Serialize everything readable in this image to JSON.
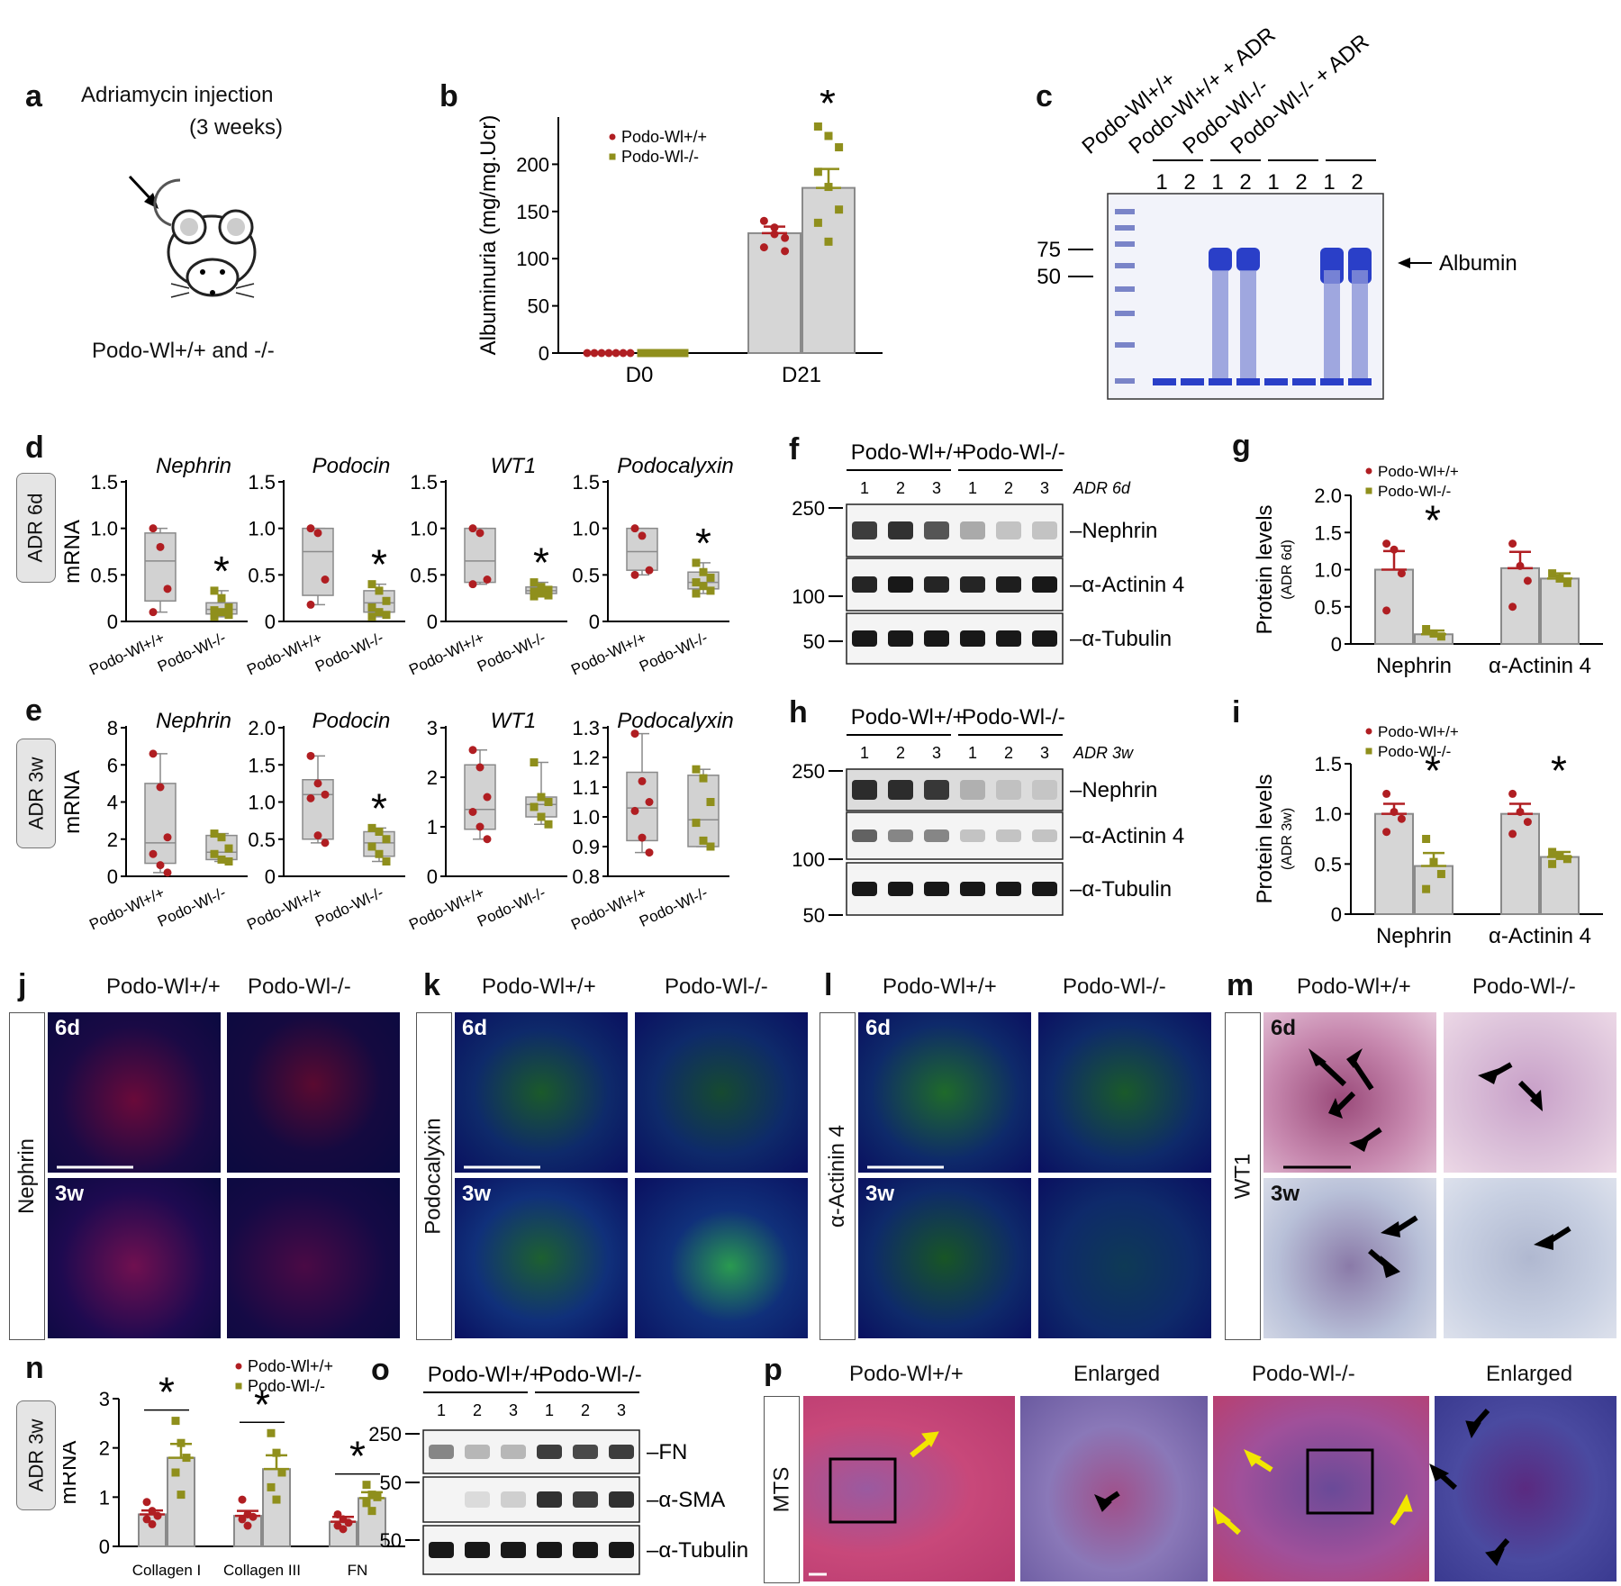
{
  "panels": {
    "a": {
      "label": "a",
      "line1": "Adriamycin injection",
      "line2": "(3 weeks)",
      "caption": "Podo-Wl+/+ and -/-"
    },
    "b": {
      "label": "b"
    },
    "c": {
      "label": "c",
      "lanes": [
        "Podo-Wl+/+",
        "Podo-Wl+/+ + ADR",
        "Podo-Wl-/-",
        "Podo-Wl-/- + ADR"
      ],
      "lane_numbers": [
        "1",
        "2",
        "1",
        "2",
        "1",
        "2",
        "1",
        "2"
      ],
      "markers": [
        "75",
        "50"
      ],
      "arrow_label": "Albumin"
    },
    "d": {
      "label": "d",
      "row_tag": "ADR 6d"
    },
    "e": {
      "label": "e",
      "row_tag": "ADR 3w"
    },
    "f": {
      "label": "f",
      "groups": [
        "Podo-Wl+/+",
        "Podo-Wl-/-"
      ],
      "lanes": [
        "1",
        "2",
        "3",
        "1",
        "2",
        "3"
      ],
      "condition": "ADR 6d",
      "markers": [
        "250",
        "100",
        "50"
      ],
      "bands": [
        "Nephrin",
        "α-Actinin 4",
        "α-Tubulin"
      ]
    },
    "g": {
      "label": "g"
    },
    "h": {
      "label": "h",
      "groups": [
        "Podo-Wl+/+",
        "Podo-Wl-/-"
      ],
      "lanes": [
        "1",
        "2",
        "3",
        "1",
        "2",
        "3"
      ],
      "condition": "ADR 3w",
      "markers": [
        "250",
        "100",
        "50"
      ],
      "bands": [
        "Nephrin",
        "α-Actinin 4",
        "α-Tubulin"
      ]
    },
    "i": {
      "label": "i"
    },
    "j": {
      "label": "j",
      "stain": "Nephrin",
      "cols": [
        "Podo-Wl+/+",
        "Podo-Wl-/-"
      ],
      "rows": [
        "6d",
        "3w"
      ]
    },
    "k": {
      "label": "k",
      "stain": "Podocalyxin",
      "cols": [
        "Podo-Wl+/+",
        "Podo-Wl-/-"
      ],
      "rows": [
        "6d",
        "3w"
      ]
    },
    "l": {
      "label": "l",
      "stain": "α-Actinin 4",
      "cols": [
        "Podo-Wl+/+",
        "Podo-Wl-/-"
      ],
      "rows": [
        "6d",
        "3w"
      ]
    },
    "m": {
      "label": "m",
      "stain": "WT1",
      "cols": [
        "Podo-Wl+/+",
        "Podo-Wl-/-"
      ],
      "rows": [
        "6d",
        "3w"
      ]
    },
    "n": {
      "label": "n",
      "row_tag": "ADR 3w"
    },
    "o": {
      "label": "o",
      "groups": [
        "Podo-Wl+/+",
        "Podo-Wl-/-"
      ],
      "lanes": [
        "1",
        "2",
        "3",
        "1",
        "2",
        "3"
      ],
      "markers": [
        "250",
        "50",
        "50"
      ],
      "bands": [
        "FN",
        "α-SMA",
        "α-Tubulin"
      ]
    },
    "p": {
      "label": "p",
      "stain": "MTS",
      "cols": [
        "Podo-Wl+/+",
        "Enlarged",
        "Podo-Wl-/-",
        "Enlarged"
      ]
    }
  },
  "colors": {
    "wt": "#b01e22",
    "ko": "#8f8f1c",
    "bar": "#d6d6d6",
    "box": "#d2d2d2"
  },
  "chart_data": [
    {
      "id": "b",
      "type": "bar",
      "ylabel": "Albuminuria (mg/mg.Ucr)",
      "ylim": [
        0,
        250
      ],
      "yticks": [
        0,
        50,
        100,
        150,
        200
      ],
      "categories": [
        "D0",
        "D21"
      ],
      "series": [
        {
          "name": "Podo-Wl+/+",
          "values": [
            0,
            127
          ],
          "err": [
            0,
            7
          ],
          "points": [
            [
              0,
              0,
              0,
              0,
              0,
              0,
              0
            ],
            [
              140,
              133,
              122,
              112,
              126,
              108
            ]
          ]
        },
        {
          "name": "Podo-Wl-/-",
          "values": [
            0,
            175
          ],
          "err": [
            0,
            20
          ],
          "points": [
            [
              0,
              0,
              0,
              0,
              0,
              0,
              0
            ],
            [
              240,
              230,
              218,
              192,
              176,
              152,
              138,
              118
            ]
          ]
        }
      ],
      "significance": [
        "",
        "*"
      ],
      "legend": "top-left"
    },
    {
      "id": "d-nephrin",
      "type": "box",
      "title": "Nephrin",
      "ylabel": "mRNA",
      "ylim": [
        0,
        1.5
      ],
      "yticks": [
        "0",
        "0.5",
        "1.0",
        "1.5"
      ],
      "categories": [
        "Podo-Wl+/+",
        "Podo-Wl-/-"
      ],
      "boxes": [
        {
          "min": 0.1,
          "q1": 0.22,
          "median": 0.65,
          "q3": 0.95,
          "max": 1.0,
          "points": [
            1.0,
            0.8,
            0.35,
            0.1
          ]
        },
        {
          "min": 0.05,
          "q1": 0.08,
          "median": 0.13,
          "q3": 0.2,
          "max": 0.33,
          "points": [
            0.33,
            0.25,
            0.15,
            0.12,
            0.1,
            0.07,
            0.05
          ]
        }
      ],
      "significance": [
        "",
        "*"
      ]
    },
    {
      "id": "d-podocin",
      "type": "box",
      "title": "Podocin",
      "ylim": [
        0,
        1.5
      ],
      "yticks": [
        "0",
        "0.5",
        "1.0",
        "1.5"
      ],
      "categories": [
        "Podo-Wl+/+",
        "Podo-Wl-/-"
      ],
      "boxes": [
        {
          "min": 0.18,
          "q1": 0.28,
          "median": 0.75,
          "q3": 1.0,
          "max": 1.0,
          "points": [
            1.0,
            0.95,
            0.45,
            0.18
          ]
        },
        {
          "min": 0.05,
          "q1": 0.1,
          "median": 0.2,
          "q3": 0.33,
          "max": 0.4,
          "points": [
            0.4,
            0.33,
            0.22,
            0.15,
            0.1,
            0.07,
            0.05
          ]
        }
      ],
      "significance": [
        "",
        "*"
      ]
    },
    {
      "id": "d-wt1",
      "type": "box",
      "title": "WT1",
      "ylim": [
        0,
        1.5
      ],
      "yticks": [
        "0",
        "0.5",
        "1.0",
        "1.5"
      ],
      "categories": [
        "Podo-Wl+/+",
        "Podo-Wl-/-"
      ],
      "boxes": [
        {
          "min": 0.4,
          "q1": 0.42,
          "median": 0.65,
          "q3": 1.0,
          "max": 1.0,
          "points": [
            1.0,
            0.95,
            0.45,
            0.4
          ]
        },
        {
          "min": 0.27,
          "q1": 0.3,
          "median": 0.33,
          "q3": 0.37,
          "max": 0.42,
          "points": [
            0.42,
            0.37,
            0.34,
            0.32,
            0.3,
            0.28,
            0.27
          ]
        }
      ],
      "significance": [
        "",
        "*"
      ]
    },
    {
      "id": "d-podocalyxin",
      "type": "box",
      "title": "Podocalyxin",
      "ylim": [
        0,
        1.5
      ],
      "yticks": [
        "0",
        "0.5",
        "1.0",
        "1.5"
      ],
      "categories": [
        "Podo-Wl+/+",
        "Podo-Wl-/-"
      ],
      "boxes": [
        {
          "min": 0.5,
          "q1": 0.55,
          "median": 0.75,
          "q3": 1.0,
          "max": 1.0,
          "points": [
            1.0,
            0.92,
            0.55,
            0.5
          ]
        },
        {
          "min": 0.3,
          "q1": 0.35,
          "median": 0.42,
          "q3": 0.53,
          "max": 0.63,
          "points": [
            0.63,
            0.53,
            0.47,
            0.42,
            0.38,
            0.33,
            0.3
          ]
        }
      ],
      "significance": [
        "",
        "*"
      ]
    },
    {
      "id": "e-nephrin",
      "type": "box",
      "title": "Nephrin",
      "ylabel": "mRNA",
      "ylim": [
        0,
        8
      ],
      "yticks": [
        "0",
        "2",
        "4",
        "6",
        "8"
      ],
      "categories": [
        "Podo-Wl+/+",
        "Podo-Wl-/-"
      ],
      "boxes": [
        {
          "min": 0.2,
          "q1": 0.7,
          "median": 1.8,
          "q3": 5.0,
          "max": 6.6,
          "points": [
            6.6,
            4.8,
            2.1,
            1.2,
            0.6,
            0.2
          ]
        },
        {
          "min": 0.8,
          "q1": 0.9,
          "median": 1.3,
          "q3": 2.2,
          "max": 2.3,
          "points": [
            2.3,
            2.1,
            1.5,
            1.2,
            0.9,
            0.8
          ]
        }
      ],
      "significance": [
        "",
        ""
      ]
    },
    {
      "id": "e-podocin",
      "type": "box",
      "title": "Podocin",
      "ylim": [
        0,
        2.0
      ],
      "yticks": [
        "0",
        "0.5",
        "1.0",
        "1.5",
        "2.0"
      ],
      "categories": [
        "Podo-Wl+/+",
        "Podo-Wl-/-"
      ],
      "boxes": [
        {
          "min": 0.45,
          "q1": 0.5,
          "median": 1.1,
          "q3": 1.3,
          "max": 1.62,
          "points": [
            1.62,
            1.25,
            1.1,
            1.05,
            0.55,
            0.45
          ]
        },
        {
          "min": 0.2,
          "q1": 0.27,
          "median": 0.45,
          "q3": 0.6,
          "max": 0.65,
          "points": [
            0.65,
            0.6,
            0.5,
            0.4,
            0.3,
            0.2
          ]
        }
      ],
      "significance": [
        "",
        "*"
      ]
    },
    {
      "id": "e-wt1",
      "type": "box",
      "title": "WT1",
      "ylim": [
        0,
        3
      ],
      "yticks": [
        "0",
        "1",
        "2",
        "3"
      ],
      "categories": [
        "Podo-Wl+/+",
        "Podo-Wl-/-"
      ],
      "boxes": [
        {
          "min": 0.75,
          "q1": 0.95,
          "median": 1.35,
          "q3": 2.25,
          "max": 2.55,
          "points": [
            2.55,
            2.2,
            1.6,
            1.3,
            1.0,
            0.75
          ]
        },
        {
          "min": 1.05,
          "q1": 1.2,
          "median": 1.45,
          "q3": 1.6,
          "max": 2.3,
          "points": [
            2.3,
            1.6,
            1.5,
            1.4,
            1.2,
            1.05
          ]
        }
      ],
      "significance": [
        "",
        ""
      ]
    },
    {
      "id": "e-podocalyxin",
      "type": "box",
      "title": "Podocalyxin",
      "ylim": [
        0.8,
        1.3
      ],
      "yticks": [
        "0.8",
        "0.9",
        "1.0",
        "1.1",
        "1.2",
        "1.3"
      ],
      "categories": [
        "Podo-Wl+/+",
        "Podo-Wl-/-"
      ],
      "boxes": [
        {
          "min": 0.88,
          "q1": 0.92,
          "median": 1.03,
          "q3": 1.15,
          "max": 1.28,
          "points": [
            1.28,
            1.12,
            1.05,
            1.02,
            0.93,
            0.88
          ]
        },
        {
          "min": 0.9,
          "q1": 0.9,
          "median": 0.99,
          "q3": 1.14,
          "max": 1.16,
          "points": [
            1.16,
            1.13,
            1.05,
            0.98,
            0.92,
            0.9
          ]
        }
      ],
      "significance": [
        "",
        ""
      ]
    },
    {
      "id": "g",
      "type": "bar",
      "ylabel": "Protein levels",
      "ylabel2": "(ADR 6d)",
      "ylim": [
        0,
        2.0
      ],
      "yticks": [
        "0",
        "0.5",
        "1.0",
        "1.5",
        "2.0"
      ],
      "categories": [
        "Nephrin",
        "α-Actinin 4"
      ],
      "series": [
        {
          "name": "Podo-Wl+/+",
          "values": [
            1.0,
            1.02
          ],
          "err": [
            0.25,
            0.22
          ],
          "points": [
            [
              1.35,
              1.27,
              0.95,
              0.45
            ],
            [
              1.35,
              1.05,
              0.85,
              0.5
            ]
          ]
        },
        {
          "name": "Podo-Wl-/-",
          "values": [
            0.13,
            0.88
          ],
          "err": [
            0.05,
            0.07
          ],
          "points": [
            [
              0.2,
              0.14,
              0.1
            ],
            [
              0.95,
              0.88,
              0.82
            ]
          ]
        }
      ],
      "significance": [
        "*",
        ""
      ],
      "legend": "top-left"
    },
    {
      "id": "i",
      "type": "bar",
      "ylabel": "Protein levels",
      "ylabel2": "(ADR 3w)",
      "ylim": [
        0,
        1.5
      ],
      "yticks": [
        "0",
        "0.5",
        "1.0",
        "1.5"
      ],
      "categories": [
        "Nephrin",
        "α-Actinin 4"
      ],
      "series": [
        {
          "name": "Podo-Wl+/+",
          "values": [
            1.0,
            1.0
          ],
          "err": [
            0.1,
            0.1
          ],
          "points": [
            [
              1.2,
              1.02,
              0.95,
              0.82
            ],
            [
              1.2,
              1.02,
              0.92,
              0.8
            ]
          ]
        },
        {
          "name": "Podo-Wl-/-",
          "values": [
            0.48,
            0.57
          ],
          "err": [
            0.13,
            0.05
          ],
          "points": [
            [
              0.75,
              0.52,
              0.4,
              0.25
            ],
            [
              0.62,
              0.58,
              0.55,
              0.5
            ]
          ]
        }
      ],
      "significance": [
        "*",
        "*"
      ],
      "legend": "top-left"
    },
    {
      "id": "n",
      "type": "bar",
      "ylabel": "mRNA",
      "ylim": [
        0,
        3
      ],
      "yticks": [
        "0",
        "1",
        "2",
        "3"
      ],
      "categories": [
        "Collagen I",
        "Collagen III",
        "FN"
      ],
      "series": [
        {
          "name": "Podo-Wl+/+",
          "values": [
            0.65,
            0.62,
            0.5
          ],
          "err": [
            0.08,
            0.1,
            0.1
          ],
          "points": [
            [
              0.9,
              0.72,
              0.62,
              0.55,
              0.45
            ],
            [
              0.95,
              0.65,
              0.6,
              0.55,
              0.42
            ],
            [
              0.65,
              0.55,
              0.48,
              0.42,
              0.35
            ]
          ]
        },
        {
          "name": "Podo-Wl-/-",
          "values": [
            1.8,
            1.57,
            0.98
          ],
          "err": [
            0.28,
            0.28,
            0.12
          ],
          "points": [
            [
              2.55,
              2.1,
              1.8,
              1.5,
              1.05
            ],
            [
              2.3,
              1.9,
              1.5,
              1.2,
              0.95
            ],
            [
              1.25,
              1.05,
              1.0,
              0.88,
              0.72
            ]
          ]
        }
      ],
      "significance": [
        "*",
        "*",
        "*"
      ],
      "legend": "top-right"
    }
  ]
}
